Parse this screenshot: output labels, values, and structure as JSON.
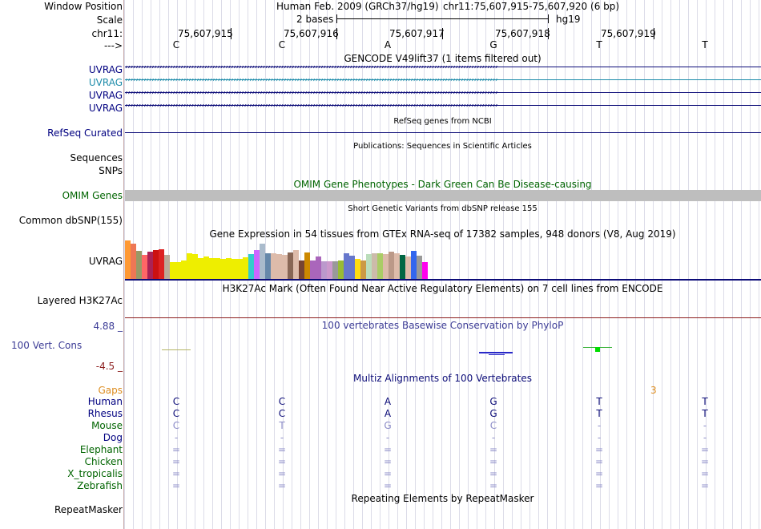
{
  "colors": {
    "label_black": "#000000",
    "label_navy": "#000080",
    "uvrag_blue": "#0C0C78",
    "uvrag_light": "#1E8CAA",
    "refseq": "#0C0C78",
    "omim": "#006400",
    "omim_bar": "#BEBEBE",
    "conservation": "#3C3C96",
    "cons_max": "#3C3C96",
    "cons_min": "#8C1E1E",
    "gaps": "#DC8C1E",
    "mouse_base": "#8C8CC8",
    "grid": "#DCDCE8"
  },
  "labels": {
    "window_position": "Window Position",
    "scale": "Scale",
    "chr": "chr11:",
    "arrow": "--->",
    "uvrag": [
      "UVRAG",
      "UVRAG",
      "UVRAG",
      "UVRAG"
    ],
    "refseq": "RefSeq Curated",
    "sequences": "Sequences",
    "snps": "SNPs",
    "omim": "OMIM Genes",
    "dbsnp": "Common dbSNP(155)",
    "gtex": "UVRAG",
    "h3k27ac": "Layered H3K27Ac",
    "cons_max": "4.88 _",
    "cons": "100 Vert. Cons",
    "cons_min": "-4.5 _",
    "gaps": "Gaps",
    "species": [
      "Human",
      "Rhesus",
      "Mouse",
      "Dog",
      "Elephant",
      "Chicken",
      "X_tropicalis",
      "Zebrafish"
    ],
    "repeatmasker": "RepeatMasker"
  },
  "header": {
    "assembly": "Human Feb. 2009 (GRCh37/hg19)",
    "position": "chr11:75,607,915-75,607,920 (6 bp)",
    "scale_bases": "2 bases",
    "scale_db": "hg19",
    "coordinates": [
      "75,607,915",
      "75,607,916",
      "75,607,917",
      "75,607,918",
      "75,607,919"
    ],
    "bases": [
      "C",
      "C",
      "A",
      "G",
      "T",
      "T"
    ]
  },
  "titles": {
    "gencode": "GENCODE V49lift37 (1 items filtered out)",
    "refseq": "RefSeq genes from NCBI",
    "publications": "Publications: Sequences in Scientific Articles",
    "omim": "OMIM Gene Phenotypes - Dark Green Can Be Disease-causing",
    "dbsnp": "Short Genetic Variants from dbSNP release 155",
    "gtex": "Gene Expression in 54 tissues from GTEx RNA-seq of 17382 samples, 948 donors (V8, Aug 2019)",
    "h3k27ac": "H3K27Ac Mark (Often Found Near Active Regulatory Elements) on 7 cell lines from ENCODE",
    "conservation": "100 vertebrates Basewise Conservation by PhyloP",
    "multiz": "Multiz Alignments of 100 Vertebrates",
    "repeatmasker": "Repeating Elements by RepeatMasker"
  },
  "arrows": {
    "forward": "›››››››››››››››››››››››››››››››››››››››››››››››››››››››››››››››››››››››››››››››››››››››››››››››››››››››››››››››››››››››››››››››››››››››››››››"
  },
  "alignment": {
    "gap_count": "3",
    "rows": [
      [
        "C",
        "C",
        "A",
        "G",
        "T",
        "T"
      ],
      [
        "C",
        "C",
        "A",
        "G",
        "T",
        "T"
      ],
      [
        "C",
        "T",
        "G",
        "C",
        "-",
        "-"
      ],
      [
        "-",
        "-",
        "-",
        "-",
        "-",
        "-"
      ],
      [
        "=",
        "=",
        "=",
        "=",
        "=",
        "="
      ],
      [
        "=",
        "=",
        "=",
        "=",
        "=",
        "="
      ],
      [
        "=",
        "=",
        "=",
        "=",
        "=",
        "="
      ],
      [
        "=",
        "=",
        "=",
        "=",
        "=",
        "="
      ]
    ]
  },
  "gtex_bars": {
    "colors": [
      "#FF9933",
      "#EE7755",
      "#999966",
      "#FF6666",
      "#AA2255",
      "#CC1111",
      "#DD2222",
      "#BBAA99",
      "#EEEE00",
      "#EEEE00",
      "#EEEE00",
      "#EEEE00",
      "#EEEE00",
      "#EEEE00",
      "#EEEE00",
      "#EEEE00",
      "#EEEE00",
      "#EEEE00",
      "#EEEE00",
      "#EEEE00",
      "#EEEE00",
      "#EEEE00",
      "#33CCCC",
      "#CC66FF",
      "#AABBCC",
      "#6688AA",
      "#DDBBAA",
      "#DDBBAA",
      "#DDBBAA",
      "#886655",
      "#DDBBAA",
      "#774433",
      "#CC8800",
      "#AA66BB",
      "#AA66BB",
      "#BB99CC",
      "#CC99CC",
      "#999999",
      "#99BB33",
      "#6677CC",
      "#6677CC",
      "#FFDD11",
      "#CC9944",
      "#BBDDBB",
      "#CCBBAA",
      "#AACC66",
      "#DDBBAA",
      "#BB9988",
      "#DDBBAA",
      "#006644",
      "#DDBBAA",
      "#3366EE",
      "#999999",
      "#FF00EE"
    ],
    "values": [
      47,
      43,
      34,
      29,
      33,
      35,
      36,
      29,
      21,
      21,
      23,
      31,
      30,
      25,
      27,
      25,
      25,
      24,
      25,
      24,
      24,
      26,
      30,
      35,
      43,
      31,
      31,
      30,
      29,
      32,
      35,
      23,
      32,
      23,
      27,
      22,
      22,
      22,
      23,
      31,
      28,
      24,
      23,
      30,
      31,
      31,
      30,
      33,
      31,
      29,
      27,
      34,
      28,
      21
    ]
  }
}
